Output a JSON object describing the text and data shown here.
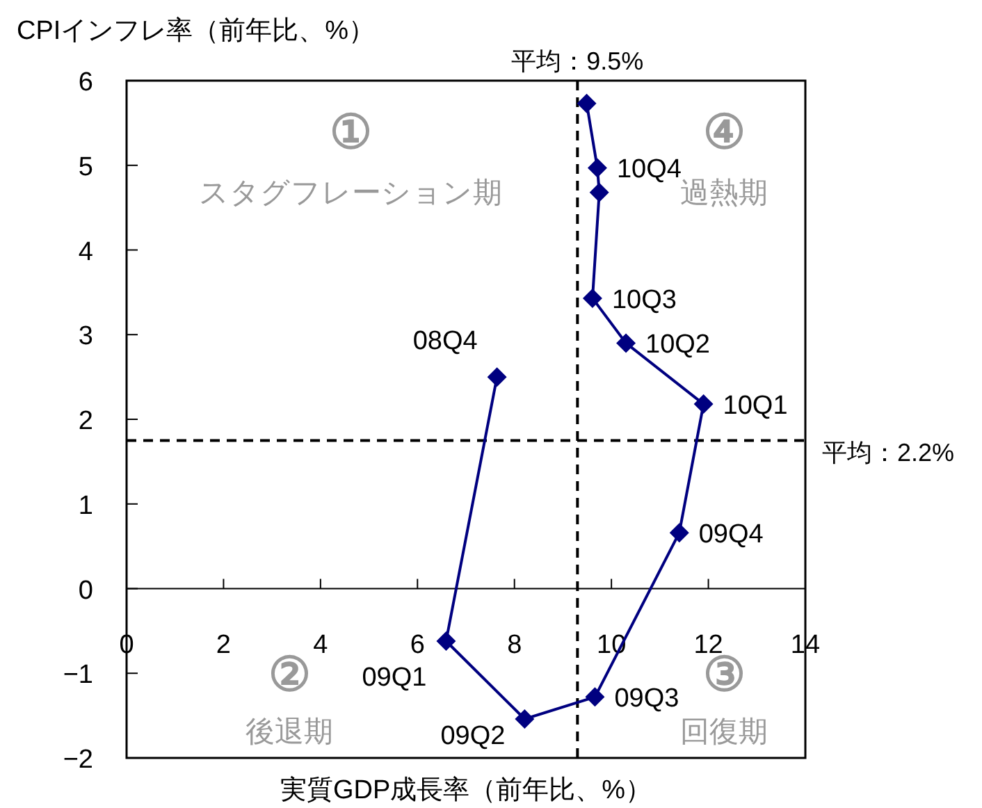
{
  "chart_data": {
    "type": "line",
    "xlabel": "実質GDP成長率（前年比、%）",
    "ylabel": "CPIインフレ率（前年比、%）",
    "xlim": [
      0,
      14
    ],
    "ylim": [
      -2,
      6
    ],
    "xticks": [
      0,
      2,
      4,
      6,
      8,
      10,
      12,
      14
    ],
    "yticks": [
      {
        "value": -2,
        "label": "−2"
      },
      {
        "value": -1,
        "label": "−1"
      },
      0,
      1,
      2,
      3,
      4,
      5,
      6
    ],
    "marker": "diamond",
    "line_style": "solid",
    "grid": false,
    "series": [
      {
        "color": "#000080",
        "x": [
          7.64,
          6.59,
          8.21,
          9.66,
          11.4,
          11.9,
          10.3,
          9.61,
          9.75,
          9.71,
          9.49
        ],
        "values": [
          2.5,
          -0.62,
          -1.54,
          -1.28,
          0.66,
          2.18,
          2.9,
          3.43,
          4.68,
          4.97,
          5.73
        ]
      }
    ],
    "ref_lines": [
      {
        "axis": "x",
        "value": 9.3,
        "label": "平均：9.5%",
        "line_style": "dashed",
        "color": "#000000"
      },
      {
        "axis": "y",
        "value": 1.75,
        "label": "平均：2.2%",
        "line_style": "dashed",
        "color": "#000000"
      }
    ],
    "annotations": [
      "①",
      "スタグフレーション期",
      "④",
      "過熱期",
      "②",
      "後退期",
      "③",
      "回復期",
      {
        "text": "08Q4",
        "x": 7.64,
        "y": 2.5
      },
      {
        "text": "09Q1",
        "x": 6.59,
        "y": -0.62
      },
      {
        "text": "09Q2",
        "x": 8.21,
        "y": -1.54
      },
      {
        "text": "09Q3",
        "x": 9.66,
        "y": -1.28
      },
      {
        "text": "09Q4",
        "x": 11.4,
        "y": 0.66
      },
      {
        "text": "10Q1",
        "x": 11.9,
        "y": 2.18
      },
      {
        "text": "10Q2",
        "x": 10.3,
        "y": 2.9
      },
      {
        "text": "10Q3",
        "x": 9.61,
        "y": 3.43
      },
      {
        "text": "10Q4",
        "x": 9.71,
        "y": 4.97
      }
    ]
  }
}
